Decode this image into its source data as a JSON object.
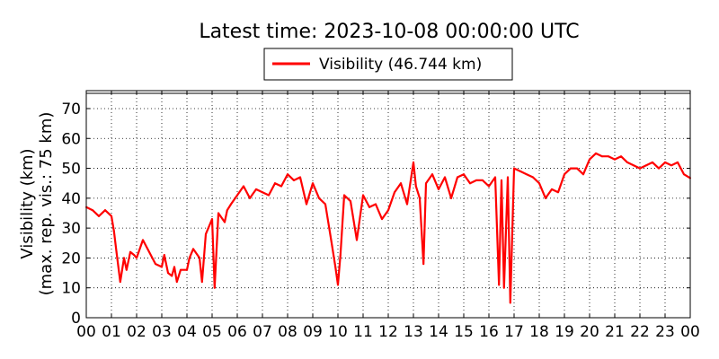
{
  "chart_data": {
    "type": "line",
    "title": "Latest time: 2023-10-08 00:00:00 UTC",
    "ylabel_line1": "Visibility (km)",
    "ylabel_line2": "(max. rep. vis.: 75 km)",
    "xlabel": "",
    "ylim": [
      0,
      76
    ],
    "xlim": [
      0,
      24
    ],
    "x_unit": "hour (UTC)",
    "grid": true,
    "legend_position": "top-center",
    "yticks": [
      0,
      10,
      20,
      30,
      40,
      50,
      60,
      70
    ],
    "xticks": [
      "00",
      "01",
      "02",
      "03",
      "04",
      "05",
      "06",
      "07",
      "08",
      "09",
      "10",
      "11",
      "12",
      "13",
      "14",
      "15",
      "16",
      "17",
      "18",
      "19",
      "20",
      "21",
      "22",
      "23",
      "00"
    ],
    "series": [
      {
        "name": "Visibility (46.744 km)",
        "color": "#ff0000",
        "x": [
          0.0,
          0.25,
          0.5,
          0.75,
          1.0,
          1.1,
          1.2,
          1.35,
          1.5,
          1.6,
          1.75,
          1.9,
          2.0,
          2.25,
          2.5,
          2.75,
          3.0,
          3.1,
          3.25,
          3.4,
          3.5,
          3.6,
          3.75,
          4.0,
          4.1,
          4.25,
          4.5,
          4.6,
          4.75,
          5.0,
          5.1,
          5.25,
          5.5,
          5.6,
          5.75,
          6.0,
          6.25,
          6.5,
          6.75,
          7.0,
          7.25,
          7.5,
          7.75,
          8.0,
          8.25,
          8.5,
          8.75,
          9.0,
          9.25,
          9.5,
          9.75,
          9.9,
          10.0,
          10.1,
          10.25,
          10.5,
          10.75,
          11.0,
          11.25,
          11.5,
          11.75,
          12.0,
          12.25,
          12.5,
          12.75,
          13.0,
          13.1,
          13.25,
          13.4,
          13.5,
          13.75,
          14.0,
          14.25,
          14.5,
          14.75,
          15.0,
          15.25,
          15.5,
          15.75,
          16.0,
          16.25,
          16.4,
          16.5,
          16.6,
          16.75,
          16.85,
          17.0,
          17.25,
          17.5,
          17.75,
          18.0,
          18.25,
          18.5,
          18.75,
          19.0,
          19.25,
          19.5,
          19.75,
          20.0,
          20.25,
          20.5,
          20.75,
          21.0,
          21.25,
          21.5,
          21.75,
          22.0,
          22.25,
          22.5,
          22.75,
          23.0,
          23.25,
          23.5,
          23.75,
          24.0
        ],
        "values": [
          37,
          36,
          34,
          36,
          34,
          29,
          22,
          12,
          20,
          16,
          22,
          21,
          20,
          26,
          22,
          18,
          17,
          21,
          15,
          14,
          17,
          12,
          16,
          16,
          20,
          23,
          20,
          12,
          28,
          33,
          10,
          35,
          32,
          36,
          38,
          41,
          44,
          40,
          43,
          42,
          41,
          45,
          44,
          48,
          46,
          47,
          38,
          45,
          40,
          38,
          25,
          17,
          11,
          21,
          41,
          39,
          26,
          41,
          37,
          38,
          33,
          36,
          42,
          45,
          38,
          52,
          44,
          40,
          18,
          45,
          48,
          43,
          47,
          40,
          47,
          48,
          45,
          46,
          46,
          44,
          47,
          11,
          46,
          10,
          47,
          5,
          50,
          49,
          48,
          47,
          45,
          40,
          43,
          42,
          48,
          50,
          50,
          48,
          53,
          55,
          54,
          54,
          53,
          54,
          52,
          51,
          50,
          51,
          52,
          50,
          52,
          51,
          52,
          48,
          46.744
        ]
      }
    ]
  }
}
